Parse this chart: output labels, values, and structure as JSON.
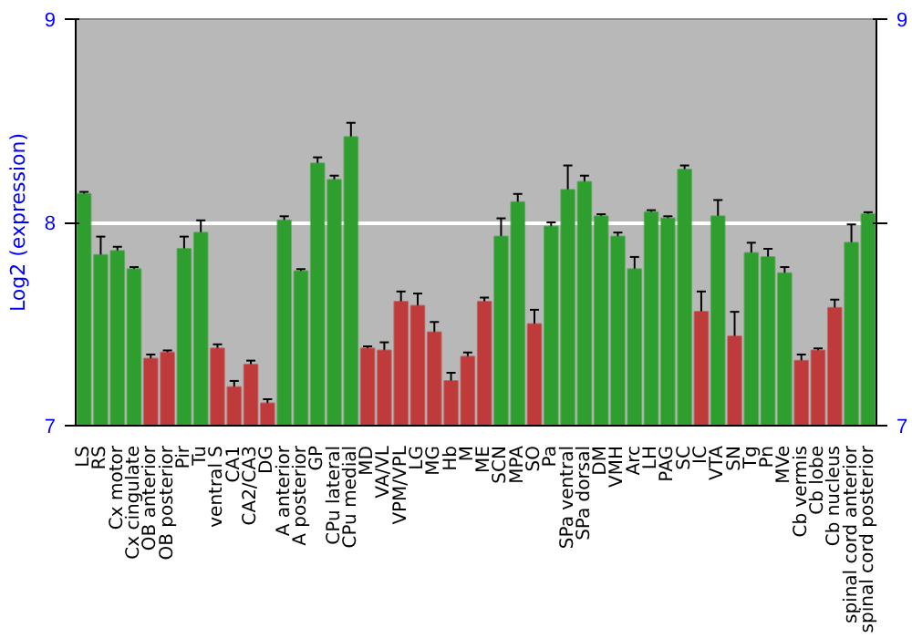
{
  "chart_data": {
    "type": "bar",
    "ylabel": "Log2 (expression)",
    "categories": [
      "LS",
      "RS",
      "Cx motor",
      "Cx cingulate",
      "OB anterior",
      "OB posterior",
      "Pir",
      "Tu",
      "ventral S",
      "CA1",
      "CA2/CA3",
      "DG",
      "A anterior",
      "A posterior",
      "GP",
      "CPu lateral",
      "CPu medial",
      "MD",
      "VA/VL",
      "VPM/VPL",
      "LG",
      "MG",
      "Hb",
      "M",
      "ME",
      "SCN",
      "MPA",
      "SO",
      "Pa",
      "SPa ventral",
      "SPa dorsal",
      "DM",
      "VMH",
      "Arc",
      "LH",
      "PAG",
      "SC",
      "IC",
      "VTA",
      "SN",
      "Tg",
      "Pn",
      "MVe",
      "Cb vermis",
      "Cb lobe",
      "Cb nucleus",
      "spinal cord anterior",
      "spinal cord posterior"
    ],
    "values": [
      8.14,
      7.84,
      7.86,
      7.77,
      7.33,
      7.36,
      7.87,
      7.95,
      7.38,
      7.19,
      7.3,
      7.11,
      8.01,
      7.76,
      8.29,
      8.21,
      8.42,
      7.38,
      7.37,
      7.61,
      7.59,
      7.46,
      7.22,
      7.34,
      7.61,
      7.93,
      8.1,
      7.5,
      7.98,
      8.16,
      8.2,
      8.03,
      7.93,
      7.77,
      8.05,
      8.02,
      8.26,
      7.56,
      8.03,
      7.44,
      7.85,
      7.83,
      7.75,
      7.32,
      7.37,
      7.58,
      7.9,
      8.04
    ],
    "errors": [
      0.01,
      0.09,
      0.02,
      0.01,
      0.02,
      0.01,
      0.06,
      0.06,
      0.02,
      0.03,
      0.02,
      0.02,
      0.02,
      0.01,
      0.03,
      0.02,
      0.07,
      0.01,
      0.04,
      0.05,
      0.06,
      0.05,
      0.04,
      0.02,
      0.02,
      0.09,
      0.04,
      0.07,
      0.02,
      0.12,
      0.03,
      0.01,
      0.02,
      0.06,
      0.01,
      0.01,
      0.02,
      0.1,
      0.08,
      0.12,
      0.05,
      0.04,
      0.03,
      0.03,
      0.01,
      0.04,
      0.09,
      0.01
    ],
    "colors": [
      "#2e9e2e",
      "#2e9e2e",
      "#2e9e2e",
      "#2e9e2e",
      "#bf3b3b",
      "#bf3b3b",
      "#2e9e2e",
      "#2e9e2e",
      "#bf3b3b",
      "#bf3b3b",
      "#bf3b3b",
      "#bf3b3b",
      "#2e9e2e",
      "#2e9e2e",
      "#2e9e2e",
      "#2e9e2e",
      "#2e9e2e",
      "#bf3b3b",
      "#bf3b3b",
      "#bf3b3b",
      "#bf3b3b",
      "#bf3b3b",
      "#bf3b3b",
      "#bf3b3b",
      "#bf3b3b",
      "#2e9e2e",
      "#2e9e2e",
      "#bf3b3b",
      "#2e9e2e",
      "#2e9e2e",
      "#2e9e2e",
      "#2e9e2e",
      "#2e9e2e",
      "#2e9e2e",
      "#2e9e2e",
      "#2e9e2e",
      "#2e9e2e",
      "#bf3b3b",
      "#2e9e2e",
      "#bf3b3b",
      "#2e9e2e",
      "#2e9e2e",
      "#2e9e2e",
      "#bf3b3b",
      "#bf3b3b",
      "#bf3b3b",
      "#2e9e2e",
      "#2e9e2e"
    ],
    "ylim": [
      7,
      9
    ],
    "yticks": [
      7,
      8,
      9
    ],
    "y2lim": [
      7,
      9
    ],
    "y2ticks": [
      7,
      {
        "value": 8,
        "label": null
      },
      9
    ],
    "grid": "y"
  }
}
